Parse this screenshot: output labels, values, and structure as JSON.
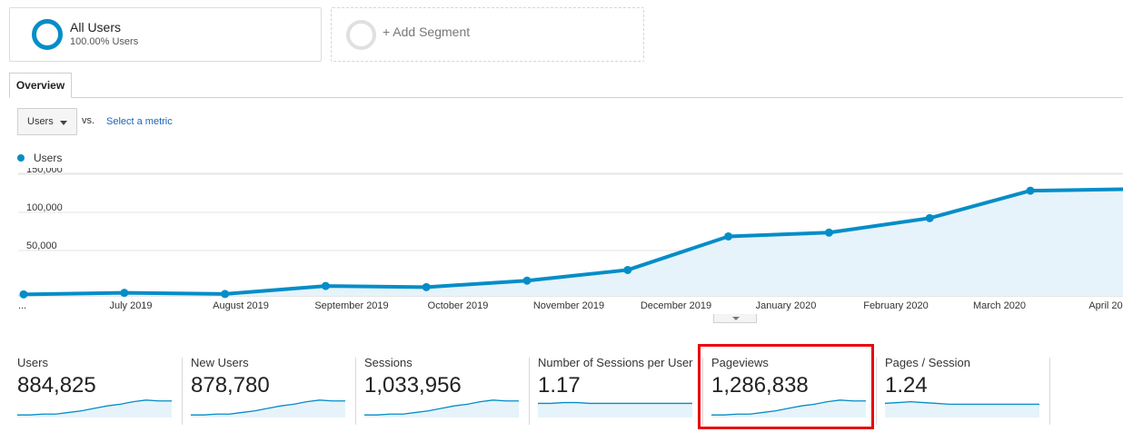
{
  "segments": [
    {
      "title": "All Users",
      "subtitle": "100.00% Users"
    },
    {
      "title": "+ Add Segment"
    }
  ],
  "tabs": [
    "Overview"
  ],
  "controls": {
    "metric": "Users",
    "vs_label": "vs.",
    "select_metric_link": "Select a metric"
  },
  "legend": {
    "label": "Users",
    "color": "#058dc7"
  },
  "chart_data": {
    "type": "area",
    "series": [
      {
        "name": "Users",
        "color": "#058dc7",
        "values": [
          2000,
          4000,
          2500,
          13000,
          11500,
          20000,
          34000,
          78000,
          83000,
          102000,
          138000,
          140000
        ]
      }
    ],
    "x_labels": [
      "...",
      "July 2019",
      "August 2019",
      "September 2019",
      "October 2019",
      "November 2019",
      "December 2019",
      "January 2020",
      "February 2020",
      "March 2020",
      "April 20"
    ],
    "y_ticks": [
      "150,000",
      "100,000",
      "50,000"
    ],
    "ylim": [
      0,
      150000
    ],
    "grid": true
  },
  "scorecards": [
    {
      "name": "Users",
      "value": "884,825",
      "trend": [
        2,
        2,
        3,
        3,
        5,
        7,
        10,
        13,
        15,
        18,
        20,
        19,
        19
      ]
    },
    {
      "name": "New Users",
      "value": "878,780",
      "trend": [
        2,
        2,
        3,
        3,
        5,
        7,
        10,
        13,
        15,
        18,
        20,
        19,
        19
      ]
    },
    {
      "name": "Sessions",
      "value": "1,033,956",
      "trend": [
        2,
        2,
        3,
        3,
        5,
        7,
        10,
        13,
        15,
        18,
        20,
        19,
        19
      ]
    },
    {
      "name": "Number of Sessions per User",
      "value": "1.17",
      "trend": [
        16,
        16,
        17,
        17,
        16,
        16,
        16,
        16,
        16,
        16,
        16,
        16,
        16
      ]
    },
    {
      "name": "Pageviews",
      "value": "1,286,838",
      "trend": [
        2,
        2,
        3,
        3,
        5,
        7,
        10,
        13,
        15,
        18,
        20,
        19,
        19
      ],
      "highlighted": true
    },
    {
      "name": "Pages / Session",
      "value": "1.24",
      "trend": [
        16,
        17,
        18,
        17,
        16,
        15,
        15,
        15,
        15,
        15,
        15,
        15,
        15
      ]
    }
  ]
}
